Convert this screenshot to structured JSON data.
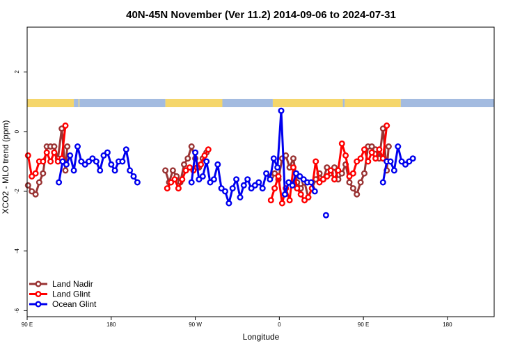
{
  "chart_data": {
    "type": "line",
    "title": "40N-45N November (Ver 11.2)   2014-09-06 to 2024-07-31",
    "xlabel": "Longitude",
    "ylabel": "XCO2 - MLO trend (ppm)",
    "xlim": [
      90,
      590
    ],
    "ylim": [
      -6.2,
      3.5
    ],
    "x_ticks": [
      {
        "value": 90,
        "label": "90 E"
      },
      {
        "value": 180,
        "label": "180"
      },
      {
        "value": 270,
        "label": "90 W"
      },
      {
        "value": 360,
        "label": "0"
      },
      {
        "value": 450,
        "label": "90 E"
      },
      {
        "value": 540,
        "label": "180"
      }
    ],
    "y_ticks": [
      {
        "value": 2,
        "label": "2"
      },
      {
        "value": 0,
        "label": "0"
      },
      {
        "value": -2,
        "label": "-2"
      },
      {
        "value": -4,
        "label": "-4"
      },
      {
        "value": -6,
        "label": "-6"
      }
    ],
    "legend": {
      "position": "bottom-left"
    },
    "colors": {
      "land": "#f5d66b",
      "ocean": "#a3bbe0"
    },
    "surface_band": [
      {
        "type": "land",
        "x0": 90,
        "x1": 140
      },
      {
        "type": "ocean",
        "x0": 140,
        "x1": 145
      },
      {
        "type": "land",
        "x0": 145,
        "x1": 146
      },
      {
        "type": "ocean",
        "x0": 146,
        "x1": 238
      },
      {
        "type": "land",
        "x0": 238,
        "x1": 299
      },
      {
        "type": "ocean",
        "x0": 299,
        "x1": 353
      },
      {
        "type": "land",
        "x0": 353,
        "x1": 428
      },
      {
        "type": "ocean",
        "x0": 428,
        "x1": 430
      },
      {
        "type": "land",
        "x0": 430,
        "x1": 490
      },
      {
        "type": "ocean",
        "x0": 490,
        "x1": 590
      }
    ],
    "series": [
      {
        "name": "Land Nadir",
        "color": "#993333",
        "segments": [
          [
            [
              91,
              -1.8
            ],
            [
              95,
              -2.0
            ],
            [
              99,
              -2.1
            ],
            [
              103,
              -1.7
            ],
            [
              107,
              -1.4
            ],
            [
              111,
              -0.5
            ],
            [
              115,
              -0.5
            ],
            [
              119,
              -0.5
            ],
            [
              123,
              -0.9
            ],
            [
              127,
              0.1
            ],
            [
              131,
              -1.3
            ],
            [
              133,
              -0.5
            ]
          ],
          [
            [
              238,
              -1.3
            ],
            [
              242,
              -1.7
            ],
            [
              246,
              -1.3
            ],
            [
              250,
              -1.5
            ],
            [
              254,
              -1.7
            ],
            [
              258,
              -1.1
            ],
            [
              262,
              -0.9
            ],
            [
              266,
              -0.5
            ],
            [
              270,
              -0.9
            ],
            [
              274,
              -1.2
            ],
            [
              278,
              -0.9
            ],
            [
              282,
              -0.7
            ]
          ],
          [
            [
              351,
              -1.5
            ],
            [
              355,
              -1.4
            ],
            [
              359,
              -1.6
            ],
            [
              363,
              -0.9
            ],
            [
              367,
              -0.8
            ],
            [
              371,
              -1.2
            ],
            [
              375,
              -0.9
            ],
            [
              379,
              -1.7
            ],
            [
              383,
              -1.9
            ],
            [
              387,
              -1.7
            ],
            [
              391,
              -2.2
            ],
            [
              395,
              -1.9
            ],
            [
              399,
              -1.6
            ],
            [
              403,
              -1.4
            ],
            [
              407,
              -1.6
            ],
            [
              411,
              -1.2
            ],
            [
              415,
              -1.4
            ],
            [
              419,
              -1.2
            ],
            [
              423,
              -1.6
            ],
            [
              427,
              -1.4
            ],
            [
              431,
              -1.1
            ],
            [
              435,
              -1.7
            ],
            [
              439,
              -1.9
            ],
            [
              443,
              -2.1
            ],
            [
              447,
              -1.7
            ],
            [
              451,
              -1.4
            ],
            [
              455,
              -0.5
            ],
            [
              459,
              -0.5
            ],
            [
              463,
              -0.6
            ],
            [
              467,
              -0.9
            ],
            [
              471,
              0.1
            ],
            [
              475,
              -1.3
            ],
            [
              477,
              -0.5
            ]
          ]
        ]
      },
      {
        "name": "Land Glint",
        "color": "#ff0000",
        "segments": [
          [
            [
              91,
              -0.8
            ],
            [
              95,
              -1.5
            ],
            [
              99,
              -1.4
            ],
            [
              103,
              -1.0
            ],
            [
              107,
              -1.0
            ],
            [
              111,
              -0.7
            ],
            [
              115,
              -1.0
            ],
            [
              119,
              -0.7
            ],
            [
              123,
              -1.0
            ],
            [
              127,
              -0.9
            ],
            [
              131,
              0.2
            ]
          ],
          [
            [
              240,
              -1.9
            ],
            [
              244,
              -1.7
            ],
            [
              248,
              -1.6
            ],
            [
              252,
              -1.9
            ],
            [
              256,
              -1.6
            ],
            [
              260,
              -1.3
            ],
            [
              264,
              -1.2
            ],
            [
              268,
              -1.3
            ],
            [
              272,
              -1.2
            ],
            [
              276,
              -1.1
            ],
            [
              280,
              -0.8
            ],
            [
              284,
              -0.6
            ]
          ],
          [
            [
              351,
              -2.3
            ],
            [
              355,
              -1.9
            ],
            [
              359,
              -1.5
            ],
            [
              363,
              -2.4
            ],
            [
              367,
              -1.9
            ],
            [
              371,
              -2.3
            ],
            [
              375,
              -1.2
            ],
            [
              379,
              -1.9
            ],
            [
              383,
              -2.1
            ],
            [
              387,
              -2.3
            ],
            [
              391,
              -2.2
            ],
            [
              395,
              -1.9
            ],
            [
              399,
              -1.0
            ],
            [
              403,
              -1.7
            ],
            [
              407,
              -1.6
            ],
            [
              411,
              -1.5
            ],
            [
              415,
              -1.3
            ],
            [
              419,
              -1.6
            ],
            [
              423,
              -1.3
            ],
            [
              427,
              -0.4
            ],
            [
              431,
              -0.8
            ],
            [
              435,
              -1.5
            ],
            [
              439,
              -1.4
            ],
            [
              443,
              -1.0
            ],
            [
              447,
              -0.9
            ],
            [
              451,
              -0.6
            ],
            [
              455,
              -1.0
            ],
            [
              459,
              -0.7
            ],
            [
              463,
              -0.9
            ],
            [
              467,
              -0.6
            ],
            [
              471,
              -0.9
            ],
            [
              475,
              0.2
            ]
          ]
        ]
      },
      {
        "name": "Ocean Glint",
        "color": "#0000ee",
        "segments": [
          [
            [
              124,
              -1.7
            ],
            [
              128,
              -1.0
            ],
            [
              132,
              -1.1
            ],
            [
              136,
              -0.8
            ],
            [
              140,
              -1.3
            ],
            [
              144,
              -0.5
            ],
            [
              148,
              -1.0
            ],
            [
              152,
              -1.1
            ],
            [
              156,
              -1.0
            ],
            [
              160,
              -0.9
            ],
            [
              164,
              -1.0
            ],
            [
              168,
              -1.3
            ],
            [
              172,
              -0.8
            ],
            [
              176,
              -0.7
            ],
            [
              180,
              -1.1
            ],
            [
              184,
              -1.3
            ],
            [
              188,
              -1.0
            ],
            [
              192,
              -1.0
            ],
            [
              196,
              -0.6
            ],
            [
              200,
              -1.3
            ],
            [
              204,
              -1.5
            ],
            [
              208,
              -1.7
            ]
          ],
          [
            [
              266,
              -1.7
            ],
            [
              270,
              -0.7
            ],
            [
              274,
              -1.6
            ],
            [
              278,
              -1.5
            ],
            [
              282,
              -1.0
            ],
            [
              286,
              -1.7
            ],
            [
              290,
              -1.6
            ],
            [
              294,
              -1.1
            ],
            [
              298,
              -1.9
            ],
            [
              302,
              -2.0
            ],
            [
              306,
              -2.4
            ],
            [
              310,
              -1.9
            ],
            [
              314,
              -1.6
            ],
            [
              318,
              -2.2
            ],
            [
              322,
              -1.8
            ],
            [
              326,
              -1.6
            ],
            [
              330,
              -1.9
            ],
            [
              334,
              -1.8
            ],
            [
              338,
              -1.7
            ],
            [
              342,
              -1.9
            ],
            [
              346,
              -1.4
            ],
            [
              350,
              -1.6
            ],
            [
              354,
              -0.9
            ],
            [
              358,
              -1.2
            ],
            [
              362,
              0.7
            ],
            [
              366,
              -2.1
            ],
            [
              370,
              -1.7
            ],
            [
              374,
              -1.8
            ],
            [
              378,
              -1.4
            ],
            [
              382,
              -1.5
            ],
            [
              386,
              -1.6
            ],
            [
              390,
              -1.7
            ],
            [
              394,
              -1.7
            ],
            [
              398,
              -2.0
            ]
          ],
          [
            [
              410,
              -2.8
            ]
          ],
          [
            [
              471,
              -1.7
            ],
            [
              475,
              -1.0
            ],
            [
              479,
              -1.0
            ],
            [
              483,
              -1.3
            ],
            [
              487,
              -0.5
            ],
            [
              491,
              -1.0
            ],
            [
              495,
              -1.1
            ],
            [
              499,
              -1.0
            ],
            [
              503,
              -0.9
            ]
          ]
        ]
      }
    ]
  }
}
